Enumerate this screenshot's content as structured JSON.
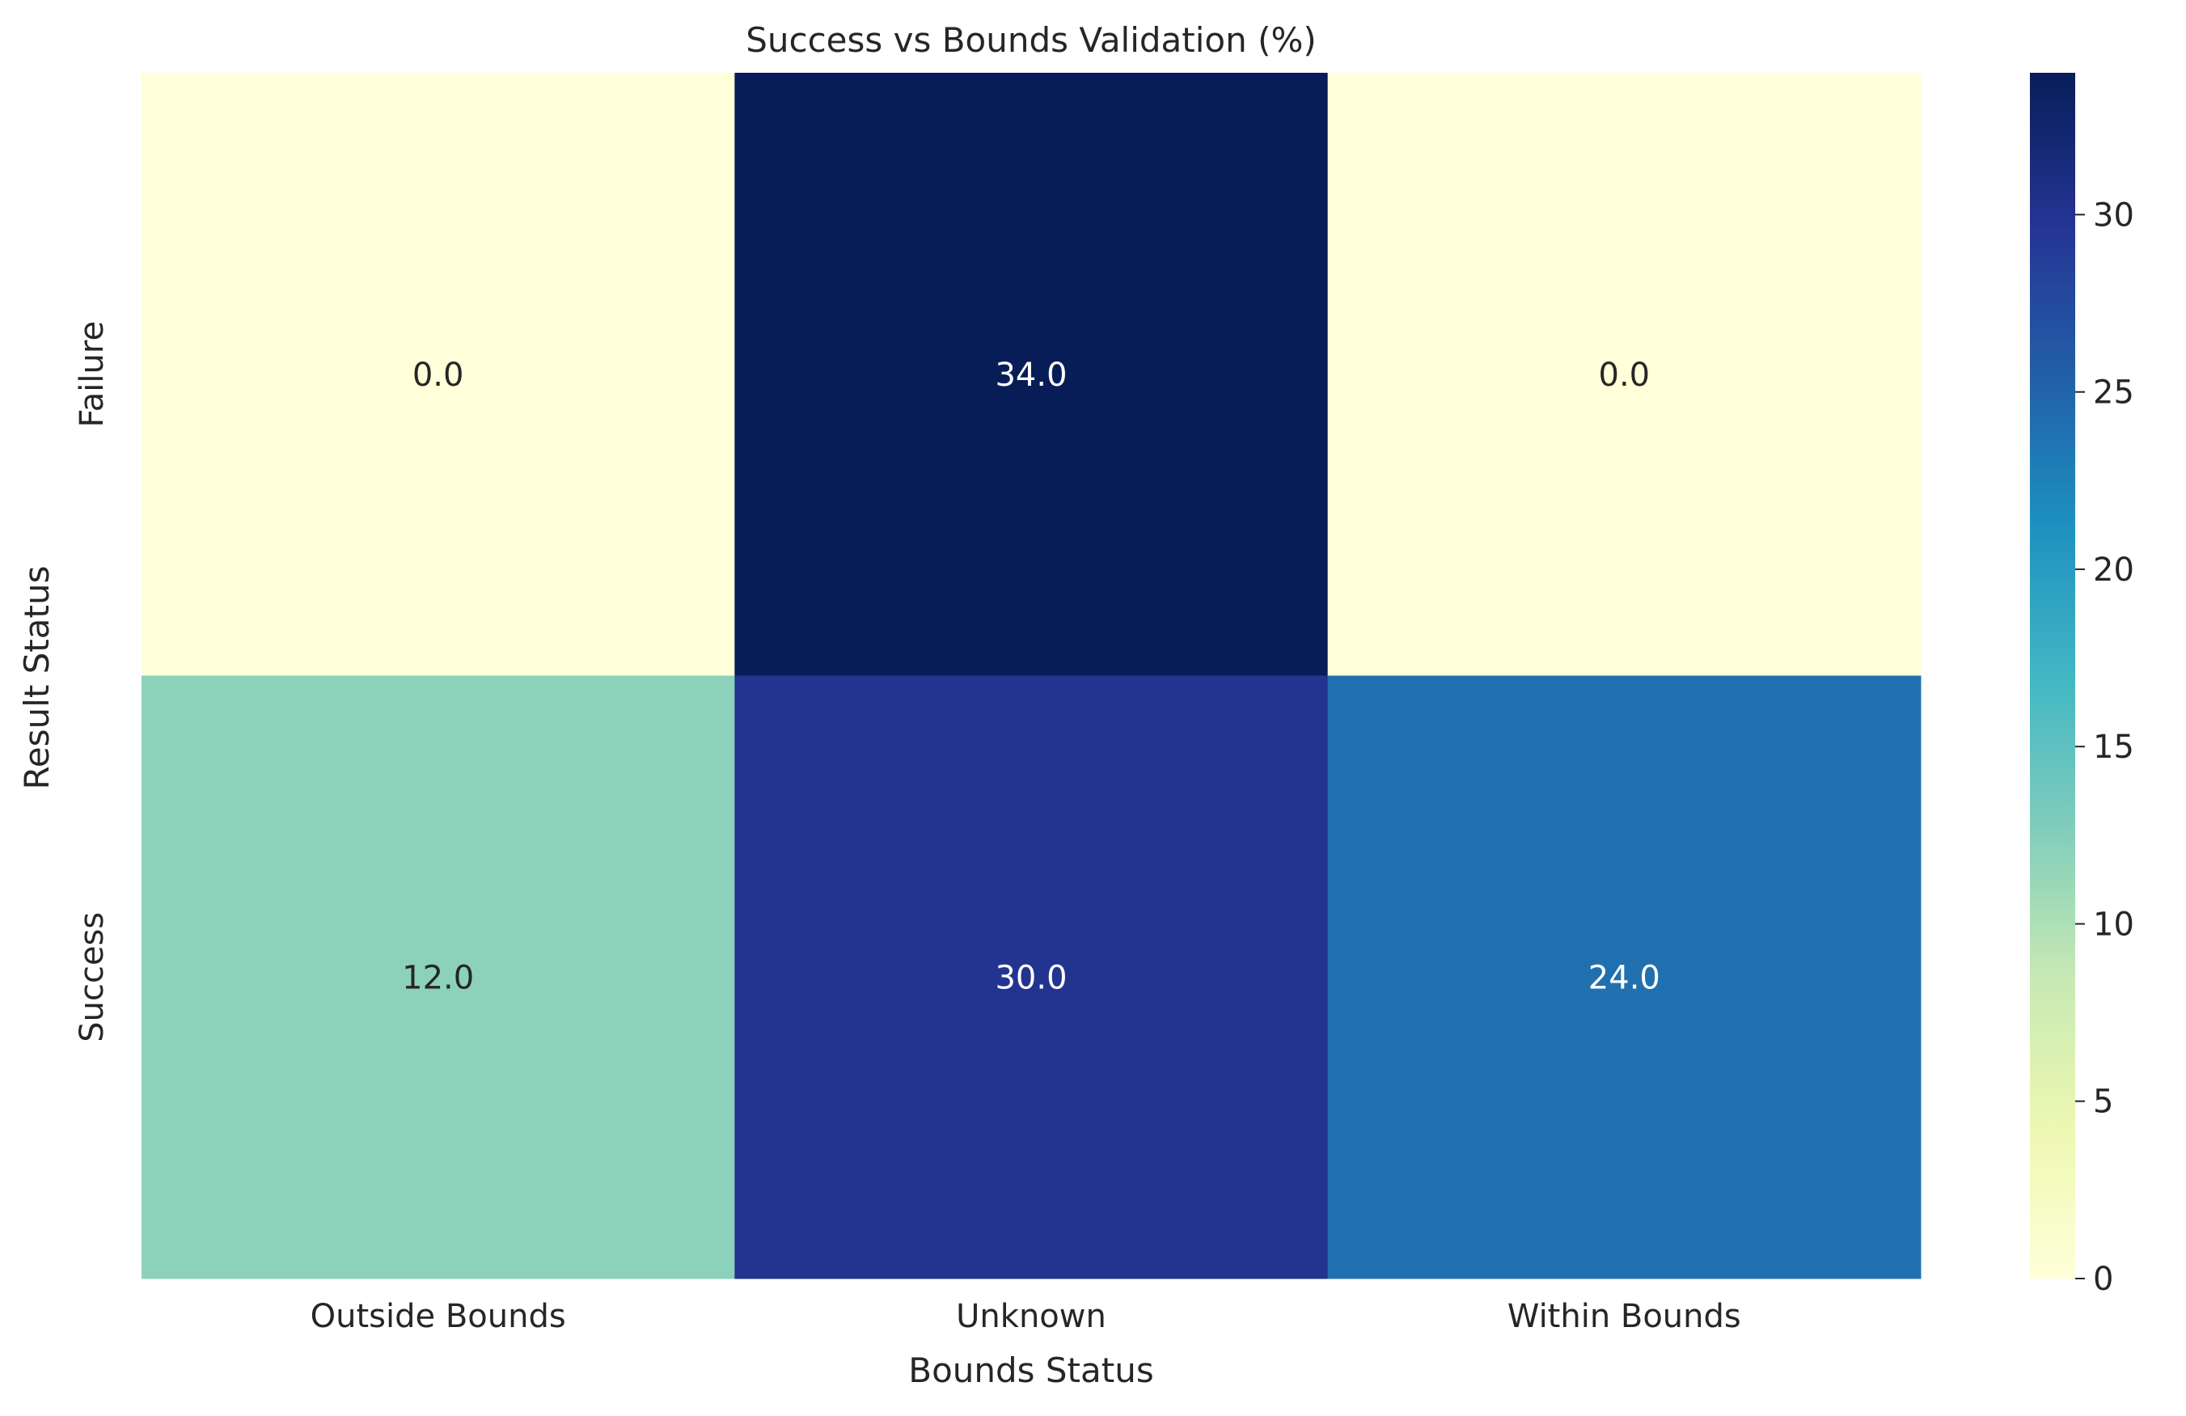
{
  "chart_data": {
    "type": "heatmap",
    "title": "Success vs Bounds Validation (%)",
    "xlabel": "Bounds Status",
    "ylabel": "Result Status",
    "x_categories": [
      "Outside Bounds",
      "Unknown",
      "Within Bounds"
    ],
    "y_categories": [
      "Failure",
      "Success"
    ],
    "values": [
      [
        0.0,
        34.0,
        0.0
      ],
      [
        12.0,
        30.0,
        24.0
      ]
    ],
    "value_format": "0.0",
    "colormap": "YlGnBu",
    "colorbar": {
      "vmin": 0,
      "vmax": 34,
      "ticks": [
        0,
        5,
        10,
        15,
        20,
        25,
        30
      ]
    },
    "colors": {
      "background": "#ffffff",
      "text_dark": "#262626",
      "text_light": "#ffffff"
    }
  }
}
